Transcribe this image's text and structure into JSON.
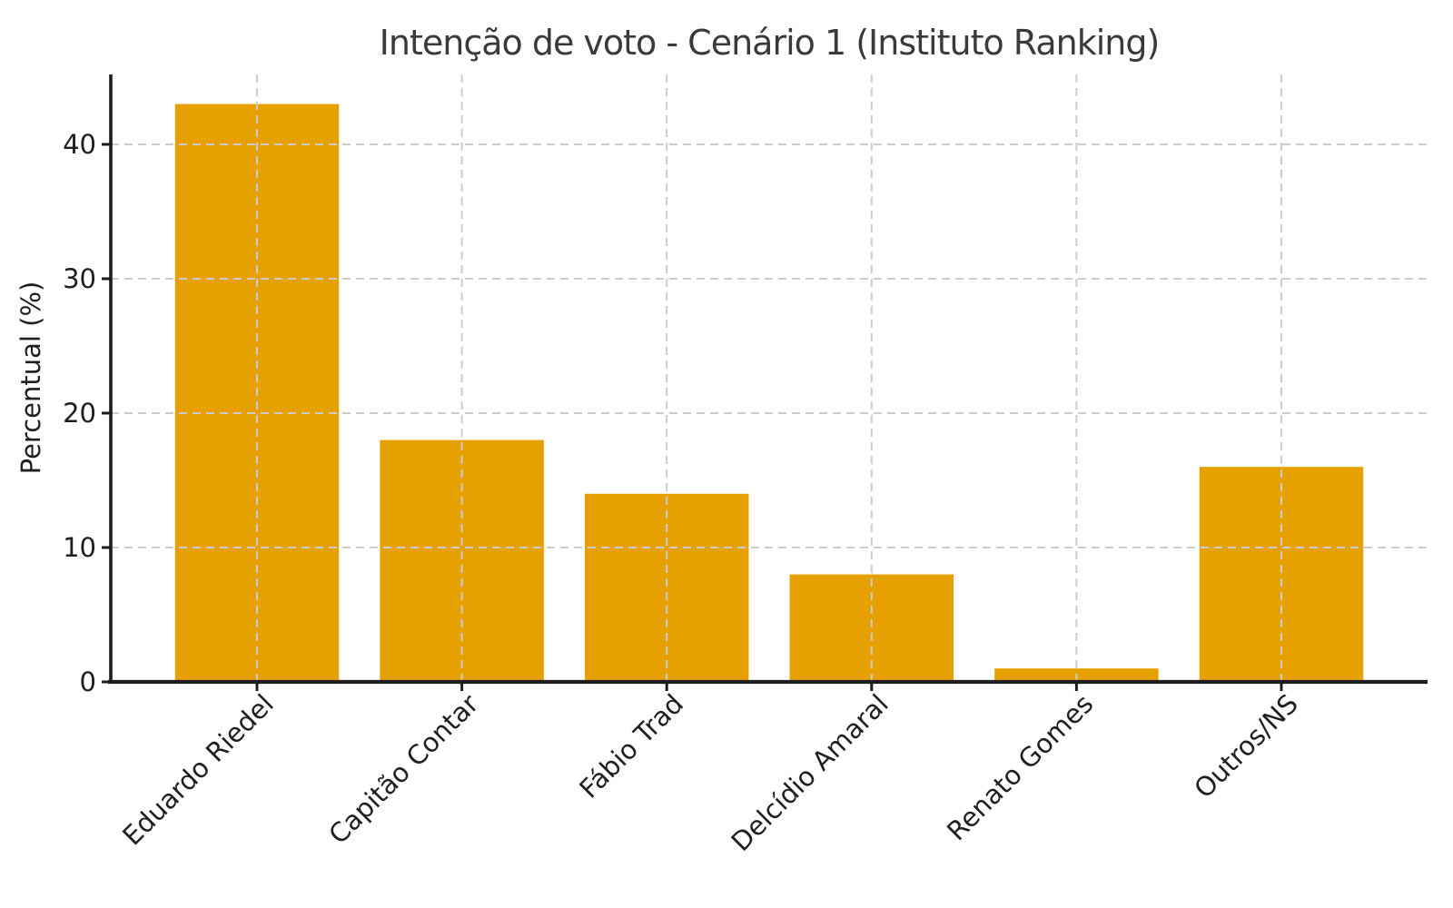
{
  "chart_data": {
    "type": "bar",
    "title": "Intenção de voto - Cenário 1 (Instituto Ranking)",
    "xlabel": "",
    "ylabel": "Percentual (%)",
    "categories": [
      "Eduardo Riedel",
      "Capitão Contar",
      "Fábio Trad",
      "Delcídio Amaral",
      "Renato Gomes",
      "Outros/NS"
    ],
    "values": [
      43,
      18,
      14,
      8,
      1,
      16
    ],
    "ylim": [
      0,
      45.2
    ],
    "yticks": [
      0,
      10,
      20,
      30,
      40
    ],
    "x_tick_rotation": 45,
    "grid": "dashed-both-axes-drawn-above-bars",
    "legend": "none",
    "colors": {
      "bar": "#E6A100",
      "grid": "#cccccc",
      "spine": "#1c1c1c",
      "tick_text": "#1f1f1f",
      "title_text": "#3a3a3a",
      "background": "#ffffff"
    }
  }
}
